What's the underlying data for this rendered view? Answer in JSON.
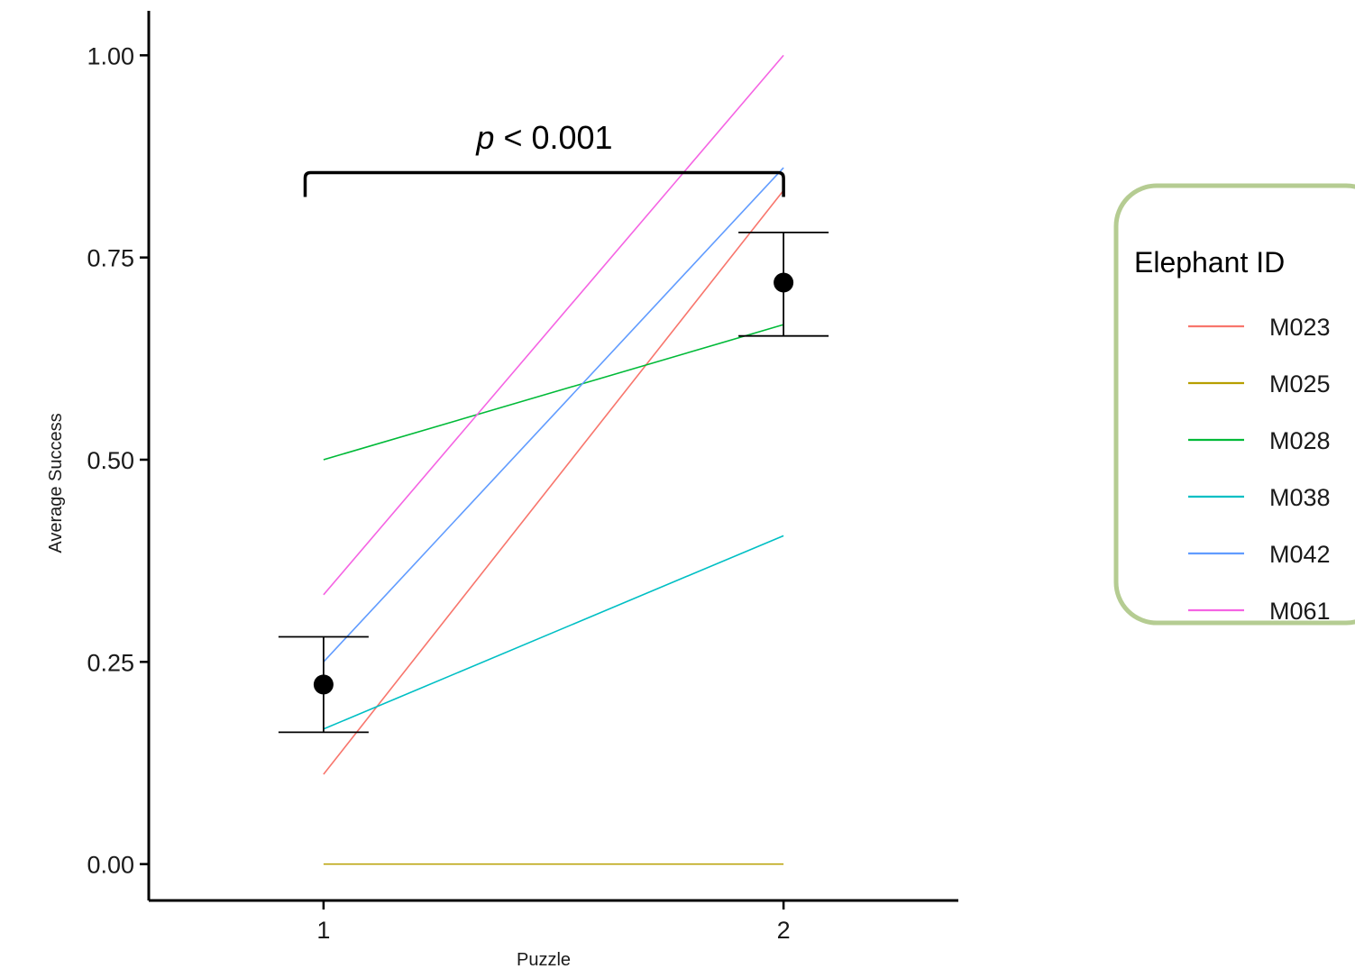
{
  "chart_data": {
    "type": "line",
    "xlabel": "Puzzle",
    "ylabel": "Average Success",
    "x": [
      1,
      2
    ],
    "x_ticks": [
      "1",
      "2"
    ],
    "xlim": [
      0.62,
      2.38
    ],
    "ylim": [
      -0.045,
      1.055
    ],
    "y_ticks": [
      "0.00",
      "0.25",
      "0.50",
      "0.75",
      "1.00"
    ],
    "grid": false,
    "series": [
      {
        "name": "M023",
        "color": "#F8766D",
        "values": [
          0.111,
          0.833
        ]
      },
      {
        "name": "M025",
        "color": "#B79F00",
        "values": [
          0.0,
          0.0
        ]
      },
      {
        "name": "M028",
        "color": "#00BA38",
        "values": [
          0.5,
          0.667
        ]
      },
      {
        "name": "M038",
        "color": "#00BFC4",
        "values": [
          0.167,
          0.406
        ]
      },
      {
        "name": "M042",
        "color": "#619CFF",
        "values": [
          0.25,
          0.861
        ]
      },
      {
        "name": "M061",
        "color": "#F564E3",
        "values": [
          0.333,
          1.0
        ]
      }
    ],
    "summary": {
      "means": [
        0.222,
        0.719
      ],
      "error_lower": [
        0.163,
        0.653
      ],
      "error_upper": [
        0.281,
        0.781
      ]
    },
    "annotation": {
      "p_symbol": "p",
      "p_text": " < 0.001",
      "bracket_y": 0.855,
      "x_from": 0.96,
      "x_to": 2.0
    },
    "legend": {
      "title": "Elephant ID",
      "placement": "right",
      "border_color": "#b5cc92"
    }
  }
}
